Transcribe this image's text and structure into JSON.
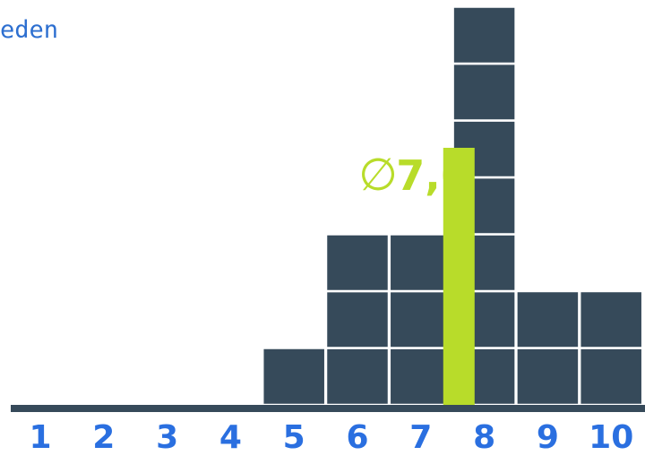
{
  "corner_text": "eden",
  "chart_data": {
    "type": "bar",
    "categories": [
      "1",
      "2",
      "3",
      "4",
      "5",
      "6",
      "7",
      "8",
      "9",
      "10"
    ],
    "values": [
      0,
      0,
      0,
      0,
      1,
      3,
      3,
      7,
      2,
      2
    ],
    "ylim": [
      0,
      7
    ],
    "stacked_units": true,
    "mean": {
      "value": 7.6,
      "label": "7,6",
      "symbol": "∅"
    },
    "colors": {
      "bar": "#364a5a",
      "unit_separator": "#ffffff",
      "mean": "#b8dc2a",
      "axis": "#364a5a",
      "tick_label": "#2a6fe0"
    }
  }
}
